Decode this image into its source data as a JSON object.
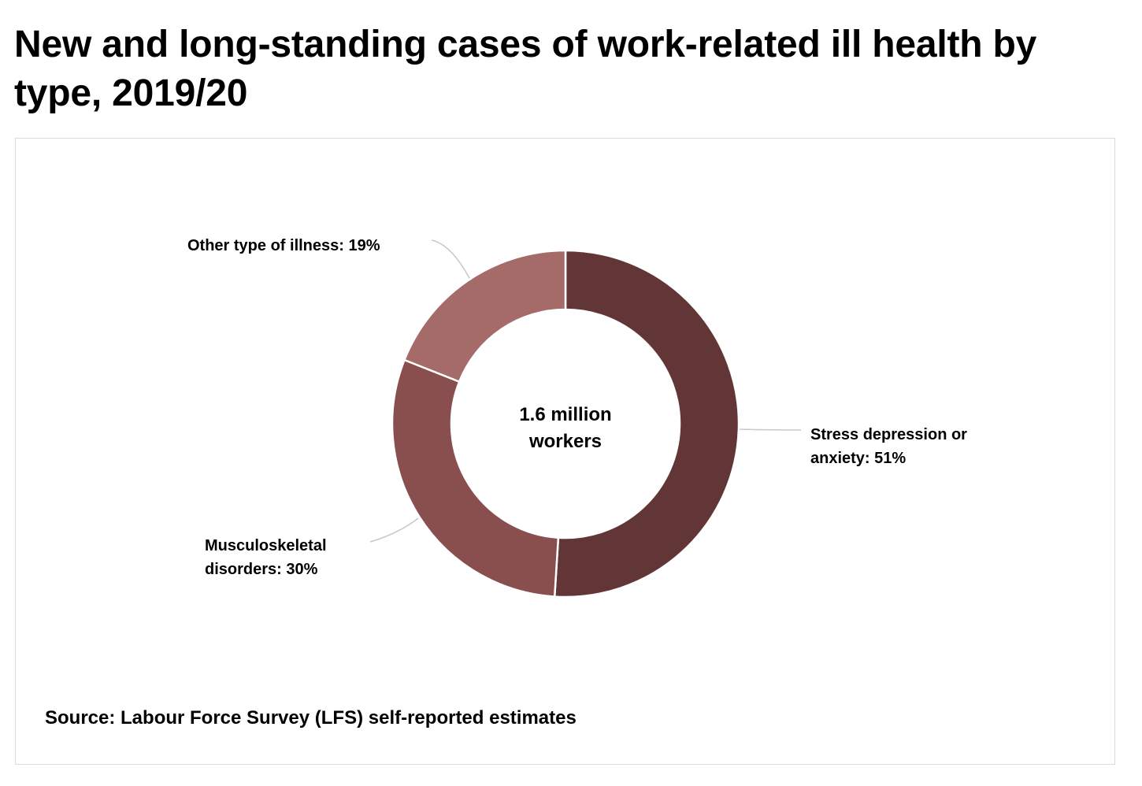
{
  "title": "New and long-standing cases of work-related ill health by type, 2019/20",
  "center_label_line1": "1.6 million",
  "center_label_line2": "workers",
  "source": "Source: Labour Force Survey (LFS) self-reported estimates",
  "chart_data": {
    "type": "pie",
    "subtype": "donut",
    "title": "New and long-standing cases of work-related ill health by type, 2019/20",
    "center_text": "1.6 million workers",
    "slices": [
      {
        "label": "Stress depression or anxiety",
        "label_line1": "Stress depression or",
        "label_line2": "anxiety: 51%",
        "value": 51,
        "color": "#623537"
      },
      {
        "label": "Musculoskeletal disorders",
        "label_line1": "Musculoskeletal",
        "label_line2": "disorders: 30%",
        "value": 30,
        "color": "#894f4e"
      },
      {
        "label": "Other type of illness",
        "label_line1": "Other type of illness: 19%",
        "label_line2": "",
        "value": 19,
        "color": "#a46b68"
      }
    ],
    "legend": "none",
    "source": "Source: Labour Force Survey (LFS) self-reported estimates"
  }
}
